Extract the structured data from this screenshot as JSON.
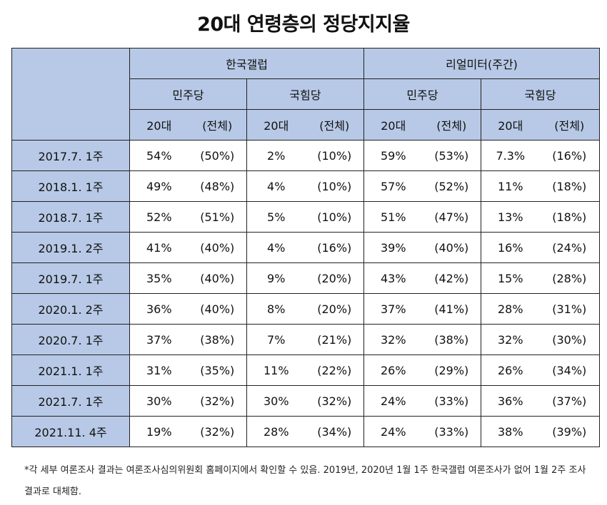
{
  "title": "20대 연령층의 정당지지율",
  "pollsters": [
    "한국갤럽",
    "리얼미터(주간)"
  ],
  "parties": [
    "민주당",
    "국힘당",
    "민주당",
    "국힘당"
  ],
  "sub_headers": [
    "20대",
    "(전체)",
    "20대",
    "(전체)",
    "20대",
    "(전체)",
    "20대",
    "(전체)"
  ],
  "rows": [
    {
      "label": "2017.7. 1주",
      "values": [
        "54%",
        "(50%)",
        "2%",
        "(10%)",
        "59%",
        "(53%)",
        "7.3%",
        "(16%)"
      ]
    },
    {
      "label": "2018.1. 1주",
      "values": [
        "49%",
        "(48%)",
        "4%",
        "(10%)",
        "57%",
        "(52%)",
        "11%",
        "(18%)"
      ]
    },
    {
      "label": "2018.7. 1주",
      "values": [
        "52%",
        "(51%)",
        "5%",
        "(10%)",
        "51%",
        "(47%)",
        "13%",
        "(18%)"
      ]
    },
    {
      "label": "2019.1. 2주",
      "values": [
        "41%",
        "(40%)",
        "4%",
        "(16%)",
        "39%",
        "(40%)",
        "16%",
        "(24%)"
      ]
    },
    {
      "label": "2019.7. 1주",
      "values": [
        "35%",
        "(40%)",
        "9%",
        "(20%)",
        "43%",
        "(42%)",
        "15%",
        "(28%)"
      ]
    },
    {
      "label": "2020.1. 2주",
      "values": [
        "36%",
        "(40%)",
        "8%",
        "(20%)",
        "37%",
        "(41%)",
        "28%",
        "(31%)"
      ]
    },
    {
      "label": "2020.7. 1주",
      "values": [
        "37%",
        "(38%)",
        "7%",
        "(21%)",
        "32%",
        "(38%)",
        "32%",
        "(30%)"
      ]
    },
    {
      "label": "2021.1. 1주",
      "values": [
        "31%",
        "(35%)",
        "11%",
        "(22%)",
        "26%",
        "(29%)",
        "26%",
        "(34%)"
      ]
    },
    {
      "label": "2021.7. 1주",
      "values": [
        "30%",
        "(32%)",
        "30%",
        "(32%)",
        "24%",
        "(33%)",
        "36%",
        "(37%)"
      ]
    },
    {
      "label": "2021.11. 4주",
      "values": [
        "19%",
        "(32%)",
        "28%",
        "(34%)",
        "24%",
        "(33%)",
        "38%",
        "(39%)"
      ]
    }
  ],
  "note": "*각 세부 여론조사 결과는 여론조사심의위원회 홈페이지에서 확인할 수 있음. 2019년, 2020년 1월 1주 한국갤럽 여론조사가 없어 1월 2주 조사 결과로 대체함.",
  "colors": {
    "header_bg": "#b7c9e6",
    "border": "#222222"
  }
}
